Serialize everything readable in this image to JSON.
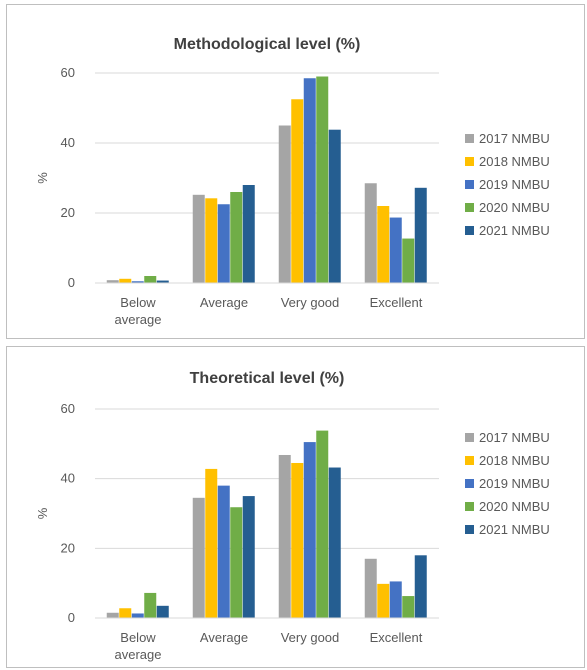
{
  "colors": {
    "2017 NMBU": "#a5a5a5",
    "2018 NMBU": "#ffc000",
    "2019 NMBU": "#4472c4",
    "2020 NMBU": "#70ad47",
    "2021 NMBU": "#255e91"
  },
  "chart_data": [
    {
      "type": "bar",
      "title": "Methodological level  (%)",
      "ylabel": "%",
      "xlabel": "",
      "ylim": [
        0,
        60
      ],
      "yticks": [
        0,
        20,
        40,
        60
      ],
      "grid": true,
      "legend_position": "right",
      "categories": [
        [
          "Below",
          "average"
        ],
        [
          "Average"
        ],
        [
          "Very good"
        ],
        [
          "Excellent"
        ]
      ],
      "series": [
        {
          "name": "2017 NMBU",
          "values": [
            0.8,
            25.2,
            45.0,
            28.5
          ]
        },
        {
          "name": "2018 NMBU",
          "values": [
            1.2,
            24.2,
            52.5,
            22.0
          ]
        },
        {
          "name": "2019 NMBU",
          "values": [
            0.5,
            22.5,
            58.5,
            18.7
          ]
        },
        {
          "name": "2020 NMBU",
          "values": [
            2.0,
            26.0,
            59.0,
            12.7
          ]
        },
        {
          "name": "2021 NMBU",
          "values": [
            0.7,
            28.0,
            43.8,
            27.2
          ]
        }
      ]
    },
    {
      "type": "bar",
      "title": "Theoretical level  (%)",
      "ylabel": "%",
      "xlabel": "",
      "ylim": [
        0,
        60
      ],
      "yticks": [
        0,
        20,
        40,
        60
      ],
      "grid": true,
      "legend_position": "right",
      "categories": [
        [
          "Below",
          "average"
        ],
        [
          "Average"
        ],
        [
          "Very good"
        ],
        [
          "Excellent"
        ]
      ],
      "series": [
        {
          "name": "2017 NMBU",
          "values": [
            1.5,
            34.5,
            46.8,
            17.0
          ]
        },
        {
          "name": "2018 NMBU",
          "values": [
            2.8,
            42.8,
            44.5,
            9.8
          ]
        },
        {
          "name": "2019 NMBU",
          "values": [
            1.3,
            38.0,
            50.5,
            10.5
          ]
        },
        {
          "name": "2020 NMBU",
          "values": [
            7.2,
            31.8,
            53.8,
            6.3
          ]
        },
        {
          "name": "2021 NMBU",
          "values": [
            3.5,
            35.0,
            43.2,
            18.0
          ]
        }
      ]
    }
  ]
}
